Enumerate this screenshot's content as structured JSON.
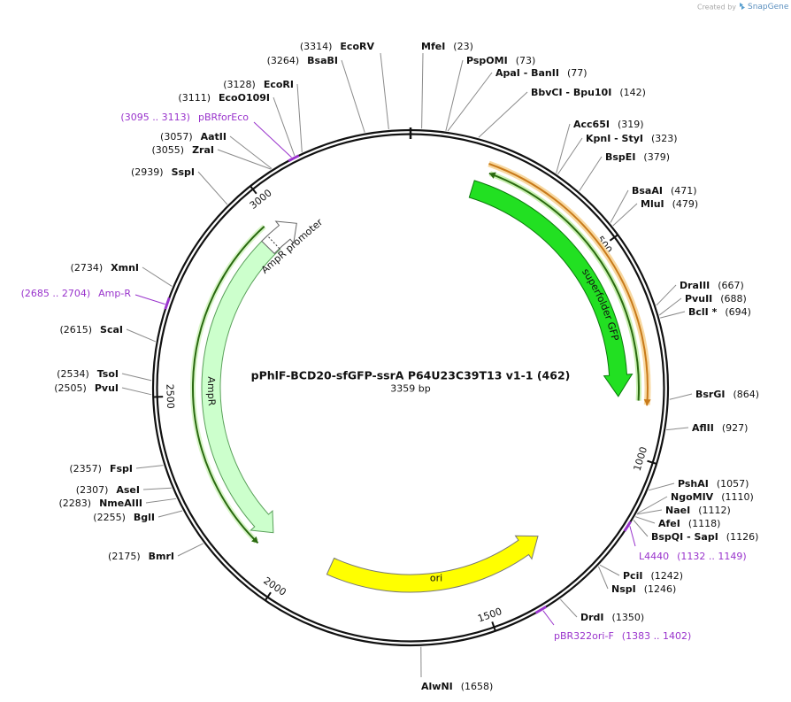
{
  "credit": {
    "prefix": "Created by",
    "brand": "SnapGene"
  },
  "plasmid": {
    "name": "pPhlF-BCD20-sfGFP-ssrA P64U23C39T13 v1-1 (462)",
    "length": {
      "value": 3359,
      "label": "3359 bp"
    },
    "ticks": [
      500,
      1000,
      1500,
      2000,
      2500,
      3000
    ]
  },
  "features": [
    {
      "name": "superfolder GFP",
      "color": "#22e022"
    },
    {
      "name": "AmpR",
      "color": "#ccffcc"
    },
    {
      "name": "AmpR promoter",
      "color": "#ffffff"
    },
    {
      "name": "ori",
      "color": "#ffff00"
    }
  ],
  "sites": [
    {
      "name": "MfeI",
      "position": {
        "value": 23,
        "label": "(23)"
      }
    },
    {
      "name": "PspOMI",
      "position": {
        "value": 73,
        "label": "(73)"
      }
    },
    {
      "name": "ApaI - BanII",
      "position": {
        "value": 77,
        "label": "(77)"
      }
    },
    {
      "name": "BbvCI - Bpu10I",
      "position": {
        "value": 142,
        "label": "(142)"
      }
    },
    {
      "name": "Acc65I",
      "position": {
        "value": 319,
        "label": "(319)"
      }
    },
    {
      "name": "KpnI - StyI",
      "position": {
        "value": 323,
        "label": "(323)"
      }
    },
    {
      "name": "BspEI",
      "position": {
        "value": 379,
        "label": "(379)"
      }
    },
    {
      "name": "BsaAI",
      "position": {
        "value": 471,
        "label": "(471)"
      }
    },
    {
      "name": "MluI",
      "position": {
        "value": 479,
        "label": "(479)"
      }
    },
    {
      "name": "DraIII",
      "position": {
        "value": 667,
        "label": "(667)"
      }
    },
    {
      "name": "PvuII",
      "position": {
        "value": 688,
        "label": "(688)"
      }
    },
    {
      "name": "BclI *",
      "position": {
        "value": 694,
        "label": "(694)"
      }
    },
    {
      "name": "BsrGI",
      "position": {
        "value": 864,
        "label": "(864)"
      }
    },
    {
      "name": "AflII",
      "position": {
        "value": 927,
        "label": "(927)"
      }
    },
    {
      "name": "PshAI",
      "position": {
        "value": 1057,
        "label": "(1057)"
      }
    },
    {
      "name": "NgoMIV",
      "position": {
        "value": 1110,
        "label": "(1110)"
      }
    },
    {
      "name": "NaeI",
      "position": {
        "value": 1112,
        "label": "(1112)"
      }
    },
    {
      "name": "AfeI",
      "position": {
        "value": 1118,
        "label": "(1118)"
      }
    },
    {
      "name": "BspQI - SapI",
      "position": {
        "value": 1126,
        "label": "(1126)"
      }
    },
    {
      "name": "PciI",
      "position": {
        "value": 1242,
        "label": "(1242)"
      }
    },
    {
      "name": "NspI",
      "position": {
        "value": 1246,
        "label": "(1246)"
      }
    },
    {
      "name": "DrdI",
      "position": {
        "value": 1350,
        "label": "(1350)"
      }
    },
    {
      "name": "AlwNI",
      "position": {
        "value": 1658,
        "label": "(1658)"
      }
    },
    {
      "name": "BmrI",
      "position": {
        "value": 2175,
        "label": "(2175)"
      }
    },
    {
      "name": "BglI",
      "position": {
        "value": 2255,
        "label": "(2255)"
      }
    },
    {
      "name": "NmeAIII",
      "position": {
        "value": 2283,
        "label": "(2283)"
      }
    },
    {
      "name": "AseI",
      "position": {
        "value": 2307,
        "label": "(2307)"
      }
    },
    {
      "name": "FspI",
      "position": {
        "value": 2357,
        "label": "(2357)"
      }
    },
    {
      "name": "PvuI",
      "position": {
        "value": 2505,
        "label": "(2505)"
      }
    },
    {
      "name": "TsoI",
      "position": {
        "value": 2534,
        "label": "(2534)"
      }
    },
    {
      "name": "ScaI",
      "position": {
        "value": 2615,
        "label": "(2615)"
      }
    },
    {
      "name": "XmnI",
      "position": {
        "value": 2734,
        "label": "(2734)"
      }
    },
    {
      "name": "SspI",
      "position": {
        "value": 2939,
        "label": "(2939)"
      }
    },
    {
      "name": "ZraI",
      "position": {
        "value": 3055,
        "label": "(3055)"
      }
    },
    {
      "name": "AatII",
      "position": {
        "value": 3057,
        "label": "(3057)"
      }
    },
    {
      "name": "EcoO109I",
      "position": {
        "value": 3111,
        "label": "(3111)"
      }
    },
    {
      "name": "EcoRI",
      "position": {
        "value": 3128,
        "label": "(3128)"
      }
    },
    {
      "name": "BsaBI",
      "position": {
        "value": 3264,
        "label": "(3264)"
      }
    },
    {
      "name": "EcoRV",
      "position": {
        "value": 3314,
        "label": "(3314)"
      }
    }
  ],
  "primers": [
    {
      "name": "pBRforEco",
      "range": {
        "start": 3095,
        "end": 3113,
        "label": "(3095 .. 3113)"
      }
    },
    {
      "name": "Amp-R",
      "range": {
        "start": 2685,
        "end": 2704,
        "label": "(2685 .. 2704)"
      }
    },
    {
      "name": "L4440",
      "range": {
        "start": 1132,
        "end": 1149,
        "label": "(1132 .. 1149)"
      }
    },
    {
      "name": "pBR322ori-F",
      "range": {
        "start": 1383,
        "end": 1402,
        "label": "(1383 .. 1402)"
      }
    }
  ]
}
